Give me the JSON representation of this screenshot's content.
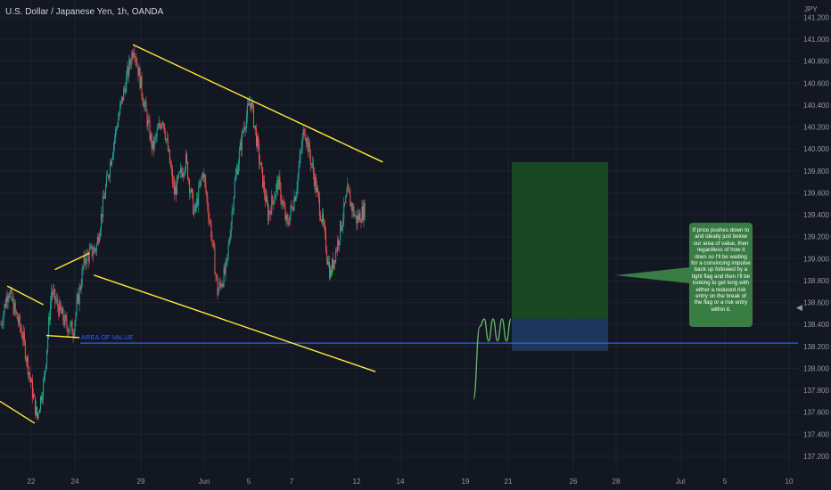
{
  "header": {
    "symbol_title": "U.S. Dollar / Japanese Yen, 1h, OANDA",
    "currency_label": "JPY"
  },
  "colors": {
    "background": "#131722",
    "grid": "#1e222d",
    "candle_up": "#26a69a",
    "candle_down": "#ef5350",
    "trendline": "#ffeb3b",
    "area_of_value_line": "#2962ff",
    "target_zone": "#1b4b25",
    "entry_zone": "#1e3a63",
    "projection": "#66bb6a",
    "note_bg": "#3a7d44",
    "axis_text": "#9598a1"
  },
  "annotations": {
    "area_of_value_label": "AREA OF VALUE",
    "note_text": "If price pushes down to and ideally just below our area of value, then regardless of how it does so I'll be waiting for a convincing impulse back up followed by a tight flag and then I'll be looking to get long with either a reduced risk entry on the break of the flag or a risk entry within it."
  },
  "ui": {
    "collapse_arrow": "◀"
  },
  "chart_data": {
    "type": "candlestick",
    "title": "U.S. Dollar / Japanese Yen, 1h, OANDA",
    "ylabel": "JPY",
    "ylim": [
      137.1,
      141.4
    ],
    "y_ticks": [
      "141.200",
      "141.000",
      "140.800",
      "140.600",
      "140.400",
      "140.200",
      "140.000",
      "139.800",
      "139.600",
      "139.400",
      "139.200",
      "139.000",
      "138.800",
      "138.600",
      "138.400",
      "138.200",
      "138.000",
      "137.800",
      "137.600",
      "137.400",
      "137.200"
    ],
    "x_ticks": [
      "22",
      "24",
      "29",
      "Jun",
      "5",
      "7",
      "12",
      "14",
      "19",
      "21",
      "26",
      "28",
      "Jul",
      "5",
      "10"
    ],
    "grid": true,
    "price_path": [
      {
        "t": 0.0,
        "price": 138.4
      },
      {
        "t": 0.5,
        "price": 138.72
      },
      {
        "t": 1.5,
        "price": 138.3
      },
      {
        "t": 2.5,
        "price": 137.55
      },
      {
        "t": 3.0,
        "price": 137.9
      },
      {
        "t": 3.5,
        "price": 138.7
      },
      {
        "t": 4.5,
        "price": 138.4
      },
      {
        "t": 5.0,
        "price": 138.35
      },
      {
        "t": 5.8,
        "price": 139.0
      },
      {
        "t": 6.6,
        "price": 139.1
      },
      {
        "t": 7.2,
        "price": 139.6
      },
      {
        "t": 8.0,
        "price": 140.2
      },
      {
        "t": 8.8,
        "price": 140.7
      },
      {
        "t": 9.2,
        "price": 140.95
      },
      {
        "t": 9.8,
        "price": 140.5
      },
      {
        "t": 10.5,
        "price": 140.0
      },
      {
        "t": 11.2,
        "price": 140.3
      },
      {
        "t": 12.0,
        "price": 139.6
      },
      {
        "t": 12.8,
        "price": 139.9
      },
      {
        "t": 13.4,
        "price": 139.4
      },
      {
        "t": 14.0,
        "price": 139.8
      },
      {
        "t": 14.6,
        "price": 139.2
      },
      {
        "t": 15.0,
        "price": 138.7
      },
      {
        "t": 15.6,
        "price": 138.9
      },
      {
        "t": 16.2,
        "price": 139.7
      },
      {
        "t": 16.8,
        "price": 140.2
      },
      {
        "t": 17.3,
        "price": 140.45
      },
      {
        "t": 17.9,
        "price": 139.9
      },
      {
        "t": 18.5,
        "price": 139.4
      },
      {
        "t": 19.2,
        "price": 139.7
      },
      {
        "t": 19.8,
        "price": 139.3
      },
      {
        "t": 20.4,
        "price": 139.6
      },
      {
        "t": 21.0,
        "price": 140.2
      },
      {
        "t": 21.6,
        "price": 139.8
      },
      {
        "t": 22.3,
        "price": 139.3
      },
      {
        "t": 22.8,
        "price": 138.85
      },
      {
        "t": 23.4,
        "price": 139.2
      },
      {
        "t": 24.0,
        "price": 139.6
      },
      {
        "t": 24.6,
        "price": 139.35
      },
      {
        "t": 25.2,
        "price": 139.45
      }
    ],
    "trendlines": [
      {
        "name": "upper-channel",
        "from": {
          "t": 9.2,
          "price": 140.95
        },
        "to": {
          "t": 26.5,
          "price": 139.88
        }
      },
      {
        "name": "lower-channel",
        "from": {
          "t": 6.5,
          "price": 138.85
        },
        "to": {
          "t": 26.0,
          "price": 137.97
        }
      },
      {
        "name": "left-wedge-top",
        "from": {
          "t": 0.5,
          "price": 138.75
        },
        "to": {
          "t": 3.0,
          "price": 138.58
        }
      },
      {
        "name": "left-wedge-bottom",
        "from": {
          "t": 0.0,
          "price": 137.7
        },
        "to": {
          "t": 2.4,
          "price": 137.5
        }
      },
      {
        "name": "small-flag-top",
        "from": {
          "t": 3.8,
          "price": 138.9
        },
        "to": {
          "t": 6.2,
          "price": 139.05
        }
      },
      {
        "name": "small-flag-bottom",
        "from": {
          "t": 3.2,
          "price": 138.3
        },
        "to": {
          "t": 5.5,
          "price": 138.28
        }
      }
    ],
    "horizontal_levels": [
      {
        "name": "area-of-value",
        "price": 138.23
      }
    ],
    "zones": [
      {
        "name": "target-zone",
        "from_price": 138.45,
        "to_price": 139.88
      },
      {
        "name": "entry-zone",
        "from_price": 138.16,
        "to_price": 138.45
      }
    ],
    "projection_path": [
      {
        "step": 0,
        "price": 137.72
      },
      {
        "step": 1,
        "price": 138.38
      },
      {
        "step": 2,
        "price": 138.45
      },
      {
        "step": 3,
        "price": 138.25
      },
      {
        "step": 4,
        "price": 138.45
      },
      {
        "step": 5,
        "price": 138.25
      },
      {
        "step": 6,
        "price": 138.45
      },
      {
        "step": 7,
        "price": 138.25
      },
      {
        "step": 8,
        "price": 138.45
      }
    ]
  }
}
